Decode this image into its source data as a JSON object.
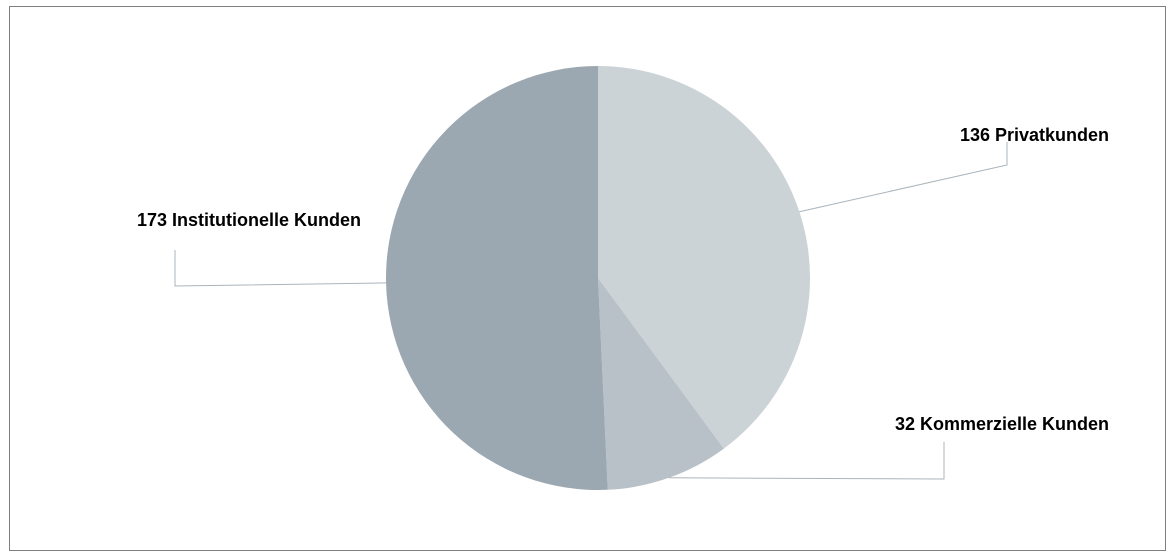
{
  "chart_data": {
    "type": "pie",
    "slices": [
      {
        "value": 136,
        "label": "136 Privatkunden",
        "color": "#ccd3d7"
      },
      {
        "value": 32,
        "label": "32 Kommerzielle Kunden",
        "color": "#b9c1c8"
      },
      {
        "value": 173,
        "label": "173 Institutionelle Kunden",
        "color": "#9ba8b1"
      }
    ],
    "leader_color": "#aab4bc",
    "legend": "none"
  }
}
